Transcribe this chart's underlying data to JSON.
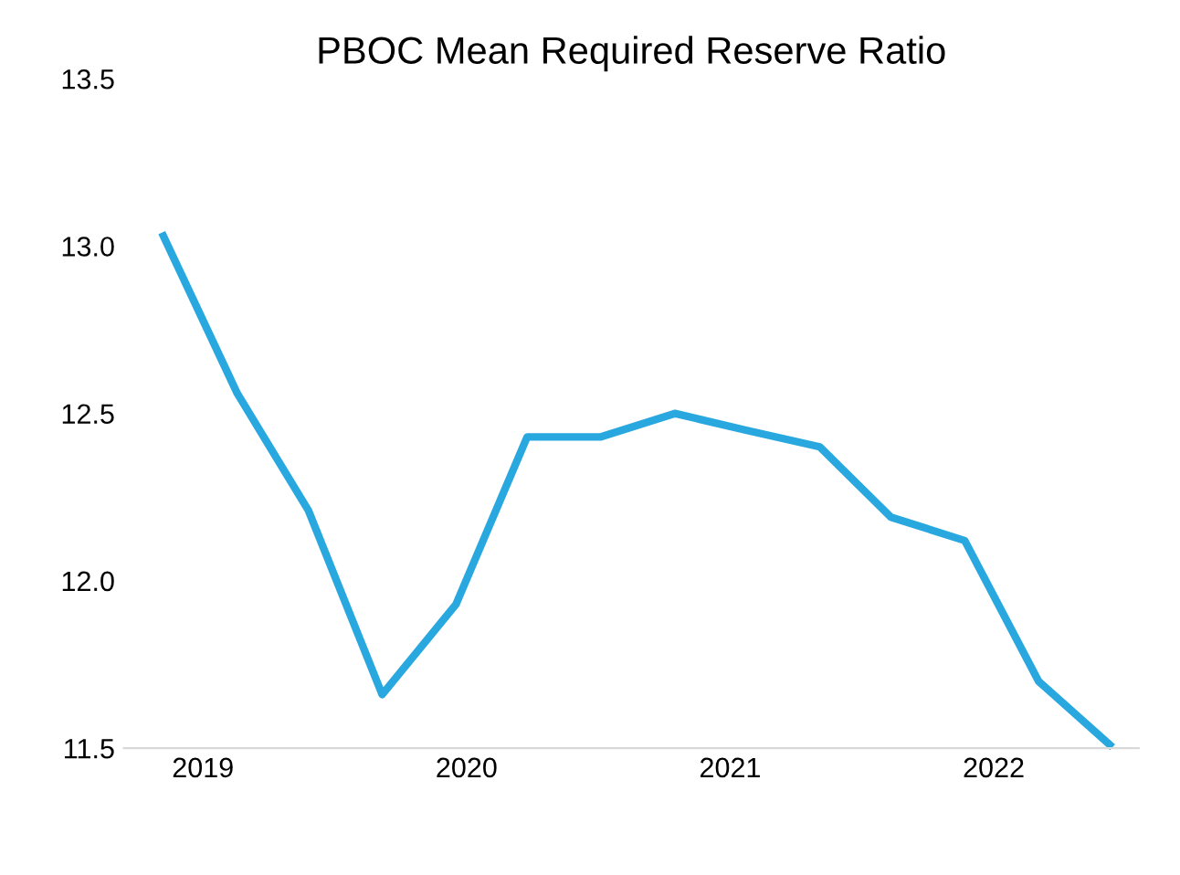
{
  "chart_data": {
    "type": "line",
    "title": "PBOC Mean Required Reserve Ratio",
    "x": [
      2018.85,
      2019.13,
      2019.4,
      2019.68,
      2019.96,
      2020.23,
      2020.51,
      2020.79,
      2021.06,
      2021.34,
      2021.61,
      2021.89,
      2022.17,
      2022.44
    ],
    "series": [
      {
        "color": "#29a8e0",
        "values": [
          13.03,
          12.56,
          12.21,
          11.66,
          11.93,
          12.43,
          12.43,
          12.5,
          12.45,
          12.4,
          12.19,
          12.12,
          11.7,
          11.51
        ]
      }
    ],
    "xlim": [
      2018.7,
      2022.55
    ],
    "xticks": [
      2019,
      2020,
      2021,
      2022
    ],
    "ylim": [
      11.5,
      13.5
    ],
    "yticks": [
      11.5,
      {
        "value": 12,
        "label": "12.0"
      },
      12.5,
      {
        "value": 13,
        "label": "13.0"
      },
      13.5
    ],
    "grid": false,
    "marker": "none",
    "line_style": "solid"
  }
}
